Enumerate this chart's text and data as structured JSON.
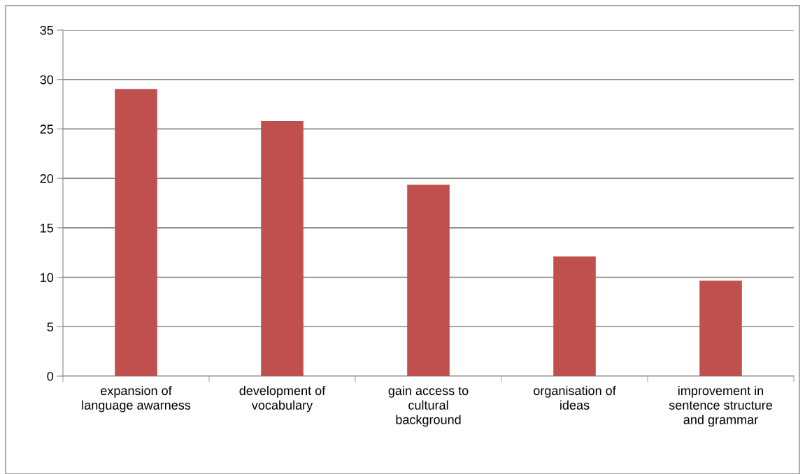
{
  "chart_data": {
    "type": "bar",
    "categories": [
      "expansion of\nlanguage awarness",
      "development of\nvocabulary",
      "gain access to\ncultural\nbackground",
      "organisation of\nideas",
      "improvement in\nsentence structure\nand grammar"
    ],
    "values": [
      29.05,
      25.8,
      19.35,
      12.1,
      9.65
    ],
    "color": "#c0504d",
    "ylim": [
      0,
      35
    ],
    "yticks": [
      0,
      5,
      10,
      15,
      20,
      25,
      30,
      35
    ],
    "grid": "y",
    "legend": false
  }
}
